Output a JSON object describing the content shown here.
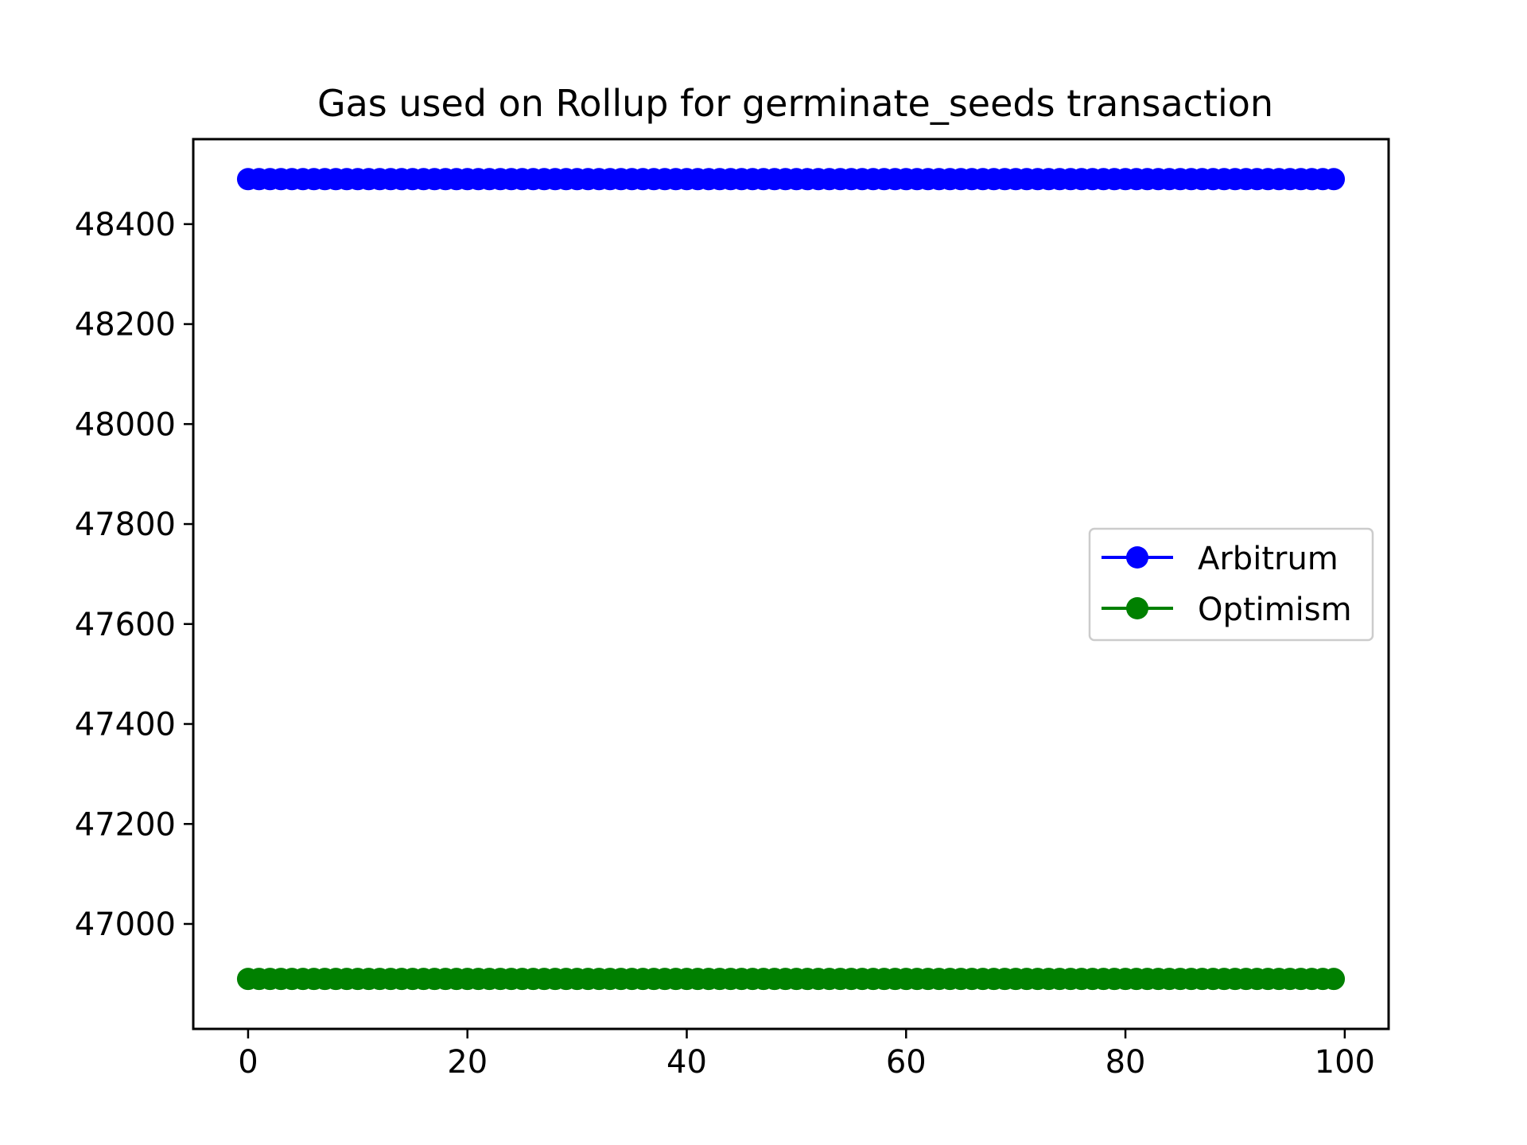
{
  "chart_data": {
    "type": "line",
    "title": "Gas used on Rollup for germinate_seeds transaction",
    "xlabel": "",
    "ylabel": "",
    "xlim": [
      -5,
      104
    ],
    "ylim": [
      46790,
      48570
    ],
    "x_ticks": [
      0,
      20,
      40,
      60,
      80,
      100
    ],
    "y_ticks": [
      47000,
      47200,
      47400,
      47600,
      47800,
      48000,
      48200,
      48400
    ],
    "grid": false,
    "legend_position": "center-right",
    "x": {
      "start": 0,
      "end": 99,
      "step": 1
    },
    "series": [
      {
        "name": "Arbitrum",
        "color": "#0000ff",
        "marker": "circle",
        "constant_value": 48490
      },
      {
        "name": "Optimism",
        "color": "#008000",
        "marker": "circle",
        "constant_value": 46890
      }
    ]
  }
}
